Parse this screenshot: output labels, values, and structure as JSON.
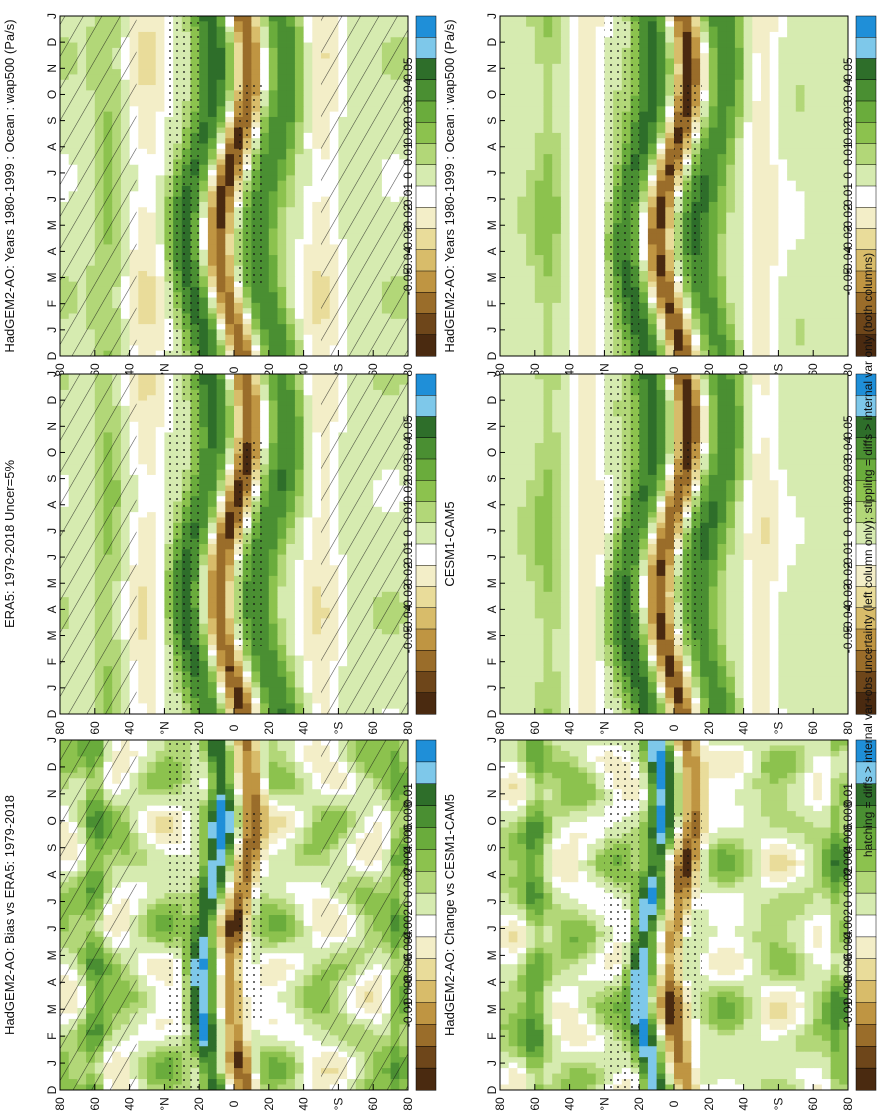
{
  "figure_footnote": "hatching = diffs > internal var+obs uncertainty (left column only); stippling = diffs > internal var only (both columns)",
  "chart_data": [
    {
      "type": "heatmap",
      "panel": "top-left",
      "title": "HadGEM2-AO: Years 1980-1999 : Ocean : wap500 (Pa/s)",
      "x": [
        "D",
        "J",
        "F",
        "M",
        "A",
        "M",
        "J",
        "J",
        "A",
        "S",
        "O",
        "N",
        "D",
        "J"
      ],
      "y": [
        "80",
        "60",
        "40",
        "°N",
        "20",
        "0",
        "20",
        "40",
        "°S",
        "60",
        "80"
      ],
      "colorbar": [
        "0.05",
        "0.04",
        "0.03",
        "0.02",
        "0.01",
        "0",
        "-0.01",
        "-0.02",
        "-0.03",
        "-0.04",
        "-0.05"
      ],
      "hatching": true,
      "stippling": true
    },
    {
      "type": "heatmap",
      "panel": "top-right",
      "title": "HadGEM2-AO: Years 1980-1999 : Ocean : wap500 (Pa/s)",
      "x": [
        "D",
        "J",
        "F",
        "M",
        "A",
        "M",
        "J",
        "J",
        "A",
        "S",
        "O",
        "N",
        "D",
        "J"
      ],
      "y": [
        "80",
        "60",
        "40",
        "°N",
        "20",
        "0",
        "20",
        "40",
        "°S",
        "60",
        "80"
      ],
      "colorbar": [
        "0.05",
        "0.04",
        "0.03",
        "0.02",
        "0.01",
        "0",
        "-0.01",
        "-0.02",
        "-0.03",
        "-0.04",
        "-0.05"
      ],
      "hatching": false,
      "stippling": true
    },
    {
      "type": "heatmap",
      "panel": "middle-left",
      "title": "ERA5: 1979-2018 Uncer=5%",
      "x": [
        "D",
        "J",
        "F",
        "M",
        "A",
        "M",
        "J",
        "J",
        "A",
        "S",
        "O",
        "N",
        "D",
        "J"
      ],
      "y": [
        "80",
        "60",
        "40",
        "°N",
        "20",
        "0",
        "20",
        "40",
        "°S",
        "60",
        "80"
      ],
      "colorbar": [
        "0.05",
        "0.04",
        "0.03",
        "0.02",
        "0.01",
        "0",
        "-0.01",
        "-0.02",
        "-0.03",
        "-0.04",
        "-0.05"
      ],
      "hatching": true,
      "stippling": true
    },
    {
      "type": "heatmap",
      "panel": "middle-right",
      "title": "CESM1-CAM5",
      "x": [
        "D",
        "J",
        "F",
        "M",
        "A",
        "M",
        "J",
        "J",
        "A",
        "S",
        "O",
        "N",
        "D",
        "J"
      ],
      "y": [
        "80",
        "60",
        "40",
        "°N",
        "20",
        "0",
        "20",
        "40",
        "°S",
        "60",
        "80"
      ],
      "colorbar": [
        "0.05",
        "0.04",
        "0.03",
        "0.02",
        "0.01",
        "0",
        "-0.01",
        "-0.02",
        "-0.03",
        "-0.04",
        "-0.05"
      ],
      "hatching": false,
      "stippling": true
    },
    {
      "type": "heatmap",
      "panel": "bottom-left",
      "title": "HadGEM2-AO: Bias vs ERA5: 1979-2018",
      "x": [
        "D",
        "J",
        "F",
        "M",
        "A",
        "M",
        "J",
        "J",
        "A",
        "S",
        "O",
        "N",
        "D",
        "J"
      ],
      "y": [
        "80",
        "60",
        "40",
        "°N",
        "20",
        "0",
        "20",
        "40",
        "°S",
        "60",
        "80"
      ],
      "colorbar": [
        "0.01",
        "0.008",
        "0.006",
        "0.004",
        "0.002",
        "0",
        "-0.002",
        "-0.004",
        "-0.006",
        "-0.008",
        "-0.01"
      ],
      "hatching": true,
      "stippling": true
    },
    {
      "type": "heatmap",
      "panel": "bottom-right",
      "title": "HadGEM2-AO: Change vs CESM1-CAM5",
      "x": [
        "D",
        "J",
        "F",
        "M",
        "A",
        "M",
        "J",
        "J",
        "A",
        "S",
        "O",
        "N",
        "D",
        "J"
      ],
      "y": [
        "80",
        "60",
        "40",
        "°N",
        "20",
        "0",
        "20",
        "40",
        "°S",
        "60",
        "80"
      ],
      "colorbar": [
        "0.01",
        "0.008",
        "0.006",
        "0.004",
        "0.002",
        "0",
        "-0.002",
        "-0.004",
        "-0.006",
        "-0.008",
        "-0.01"
      ],
      "hatching": false,
      "stippling": true
    }
  ],
  "palette": [
    "#1f8fd8",
    "#7ec8ea",
    "#2e6e2a",
    "#4a8f32",
    "#6aac3c",
    "#8cc24e",
    "#b2d778",
    "#d6ebb0",
    "#ffffff",
    "#f3eec8",
    "#e9dc9a",
    "#d8bc6a",
    "#bf9542",
    "#9a6d2a",
    "#6e461a",
    "#4a2a10"
  ]
}
